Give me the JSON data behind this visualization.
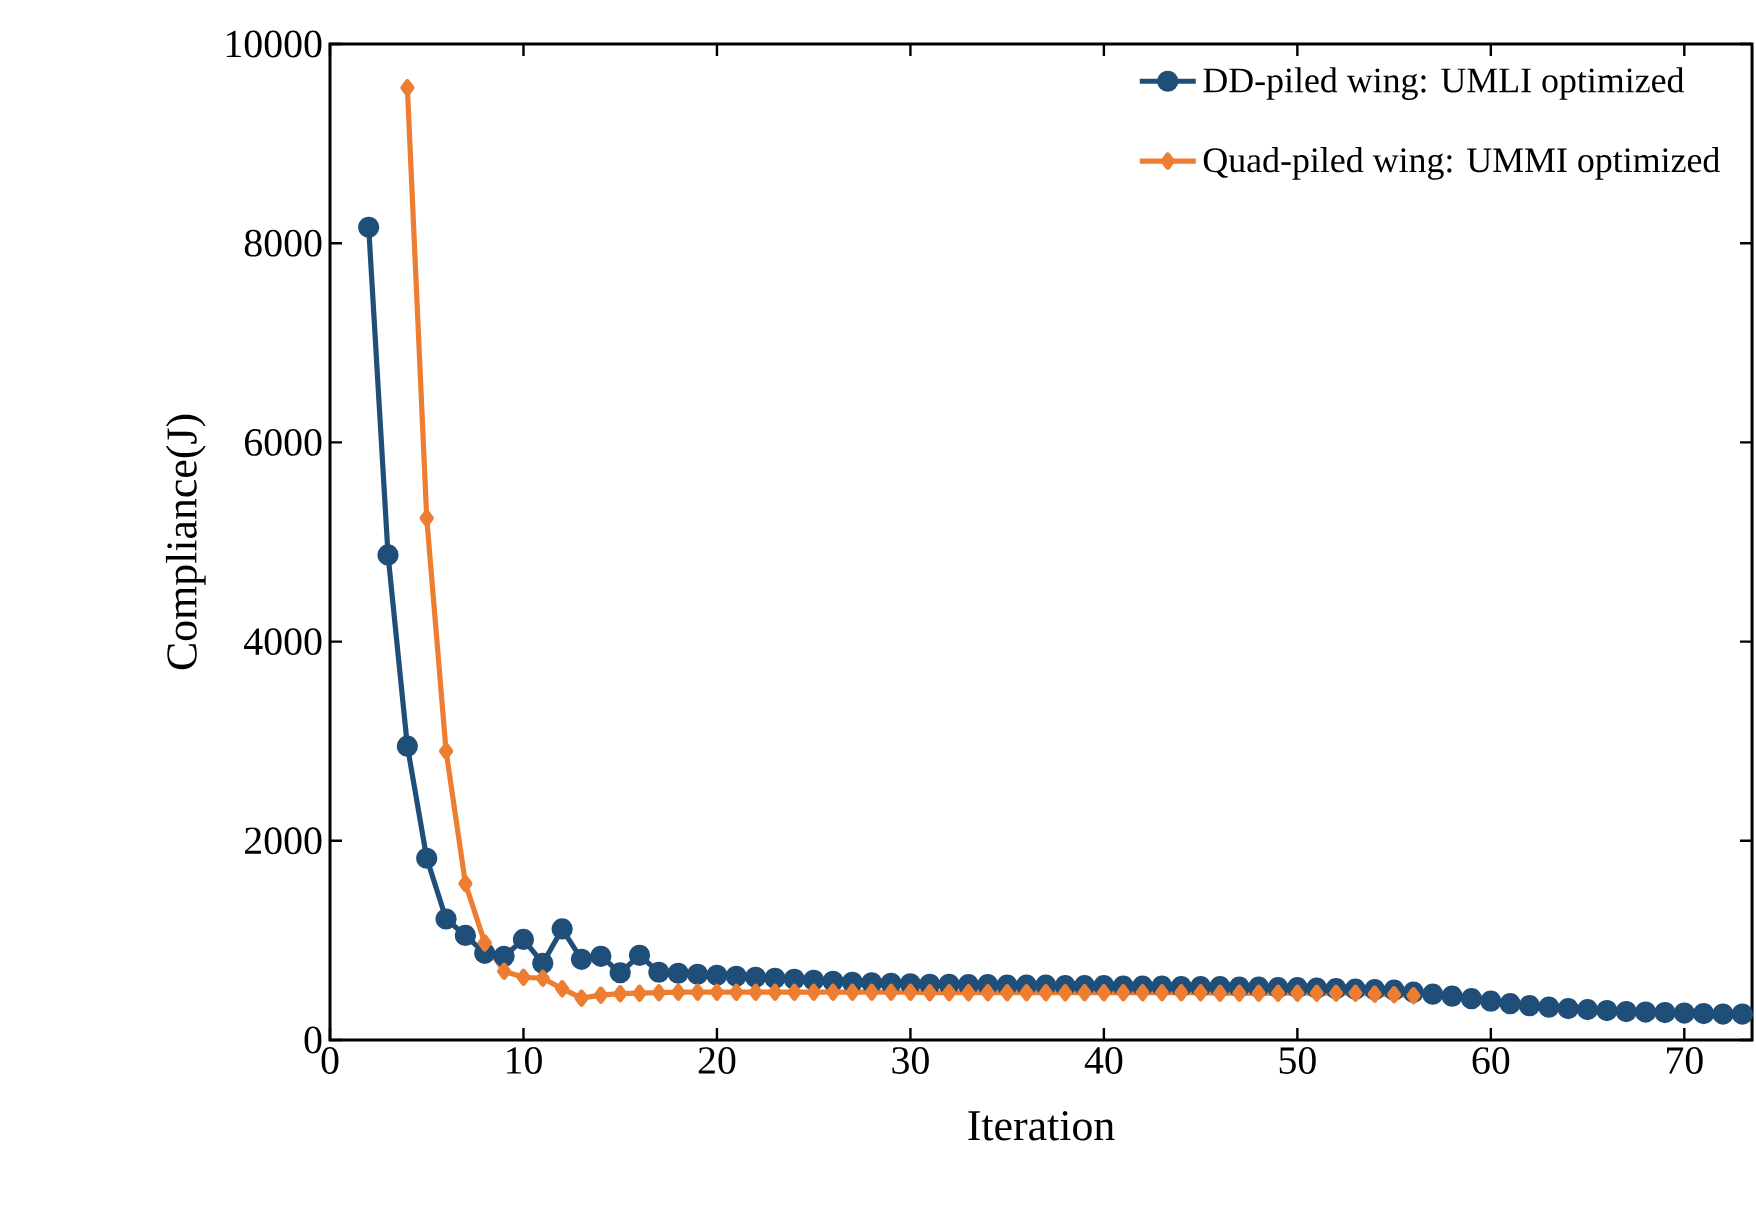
{
  "chart_data": {
    "type": "line",
    "xlabel": "Iteration",
    "ylabel": "Compliance(J)",
    "xlim": [
      0,
      73.5
    ],
    "xticks": [
      0,
      10,
      20,
      30,
      40,
      50,
      60,
      70
    ],
    "ylim": [
      0,
      10000
    ],
    "yticks": [
      0,
      2000,
      4000,
      6000,
      8000,
      10000
    ],
    "legend": "top right",
    "grid": false,
    "line_style": "solid",
    "series": [
      {
        "name": "DD-piled wing: UMLI optimized",
        "color": "#1f4e79",
        "marker": "circle",
        "x": [
          2,
          3,
          4,
          5,
          6,
          7,
          8,
          9,
          10,
          11,
          12,
          13,
          14,
          15,
          16,
          17,
          18,
          19,
          20,
          21,
          22,
          23,
          24,
          25,
          26,
          27,
          28,
          29,
          30,
          31,
          32,
          33,
          34,
          35,
          36,
          37,
          38,
          39,
          40,
          41,
          42,
          43,
          44,
          45,
          46,
          47,
          48,
          49,
          50,
          51,
          52,
          53,
          54,
          55,
          56,
          57,
          58,
          59,
          60,
          61,
          62,
          63,
          64,
          65,
          66,
          67,
          68,
          69,
          70,
          71,
          72,
          73
        ],
        "values": [
          8160,
          4870,
          2950,
          1825,
          1215,
          1050,
          870,
          840,
          1010,
          770,
          1115,
          810,
          840,
          675,
          850,
          680,
          670,
          660,
          650,
          640,
          630,
          620,
          610,
          600,
          590,
          580,
          575,
          570,
          565,
          560,
          560,
          555,
          555,
          550,
          550,
          550,
          545,
          545,
          545,
          540,
          540,
          540,
          535,
          535,
          535,
          530,
          530,
          525,
          525,
          520,
          515,
          510,
          505,
          500,
          480,
          460,
          440,
          415,
          390,
          365,
          345,
          330,
          315,
          305,
          295,
          285,
          280,
          275,
          270,
          265,
          260,
          260
        ]
      },
      {
        "name": "Quad-piled wing: UMMI optimized",
        "color": "#ed7d31",
        "marker": "diamond",
        "x": [
          4,
          5,
          6,
          7,
          8,
          9,
          10,
          11,
          12,
          13,
          14,
          15,
          16,
          17,
          18,
          19,
          20,
          21,
          22,
          23,
          24,
          25,
          26,
          27,
          28,
          29,
          30,
          31,
          32,
          33,
          34,
          35,
          36,
          37,
          38,
          39,
          40,
          41,
          42,
          43,
          44,
          45,
          46,
          47,
          48,
          49,
          50,
          51,
          52,
          53,
          54,
          55,
          56
        ],
        "values": [
          9560,
          5240,
          2900,
          1570,
          975,
          690,
          630,
          620,
          515,
          420,
          450,
          465,
          470,
          475,
          480,
          480,
          480,
          480,
          480,
          480,
          480,
          480,
          480,
          480,
          480,
          480,
          480,
          475,
          475,
          475,
          475,
          475,
          475,
          475,
          475,
          475,
          475,
          475,
          475,
          475,
          475,
          475,
          470,
          470,
          470,
          470,
          470,
          470,
          470,
          470,
          460,
          455,
          445
        ]
      }
    ]
  }
}
